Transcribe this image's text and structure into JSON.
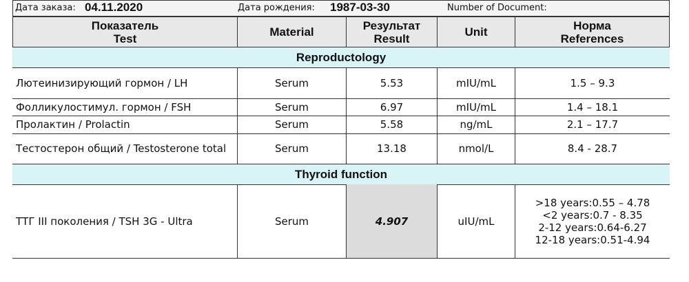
{
  "header": {
    "order_date_label": "Дата заказа:",
    "order_date": "04.11.2020",
    "birth_date_label": "Дата рождения:",
    "birth_date": "1987-03-30",
    "document_label": "Number of Document:"
  },
  "table": {
    "columns": [
      [
        "Показатель",
        "Test"
      ],
      [
        "Material"
      ],
      [
        "Результат",
        "Result"
      ],
      [
        "Unit"
      ],
      [
        "Норма",
        "References"
      ]
    ],
    "sections": [
      {
        "title": "Reproductology",
        "rows": [
          {
            "cells": [
              "Лютеинизирующий гормон  /  LH",
              "Serum",
              "5.53",
              "mIU/mL",
              [
                "1.5 – 9.3"
              ]
            ]
          },
          {
            "cells": [
              "Фолликулостимул. гормон  /   FSH",
              "Serum",
              "6.97",
              "mIU/mL",
              [
                "1.4 – 18.1"
              ]
            ]
          },
          {
            "cells": [
              "Пролактин  /  Prolactin",
              "Serum",
              "5.58",
              "ng/mL",
              [
                "2.1 – 17.7"
              ]
            ]
          },
          {
            "cells": [
              "Тестостерон общий  /  Testosterone total",
              "Serum",
              "13.18",
              "nmol/L",
              [
                "8.4 - 28.7"
              ]
            ]
          }
        ]
      },
      {
        "title": "Thyroid function",
        "rows": [
          {
            "cells": [
              "ТТГ III поколения   /   TSH 3G - Ultra",
              "Serum",
              "4.907",
              "uIU/mL",
              [
                ">18 years:0.55 – 4.78",
                "<2 years:0.7 - 8.35",
                "2-12 years:0.64-6.27",
                "12-18 years:0.51-4.94"
              ]
            ],
            "flagged": true
          }
        ]
      }
    ]
  }
}
